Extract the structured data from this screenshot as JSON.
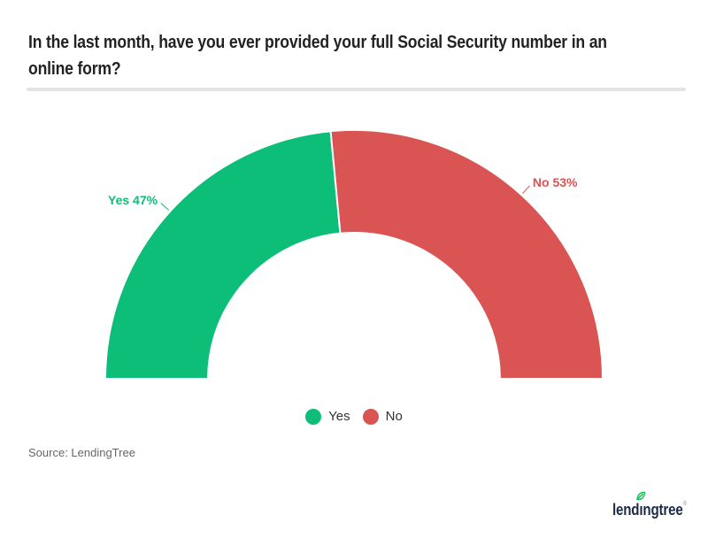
{
  "title": {
    "line1": "In the last month, have you ever provided your full Social Security number in an",
    "line2": "online form?"
  },
  "chart_data": {
    "type": "pie",
    "variant": "semi-donut",
    "title": "In the last month, have you ever provided your full Social Security number in an online form?",
    "categories": [
      "Yes",
      "No"
    ],
    "values": [
      47,
      53
    ],
    "unit": "%",
    "slice_labels": [
      "Yes 47%",
      "No 53%"
    ],
    "colors": [
      "#0dbe78",
      "#d95452"
    ],
    "start_angle_deg": 180,
    "end_angle_deg": 0,
    "inner_radius_ratio": 0.587,
    "legend": {
      "position": "bottom",
      "entries": [
        "Yes",
        "No"
      ]
    }
  },
  "divider": {
    "color": "#e4e4e4"
  },
  "source": {
    "text": "Source: LendingTree"
  },
  "logo": {
    "full_text": "lendingtree",
    "part1": "lend",
    "dotless_i": "ı",
    "part2": "ngtree",
    "registered_mark": "®",
    "text_color": "#1d2b47",
    "leaf_color": "#21c161"
  }
}
